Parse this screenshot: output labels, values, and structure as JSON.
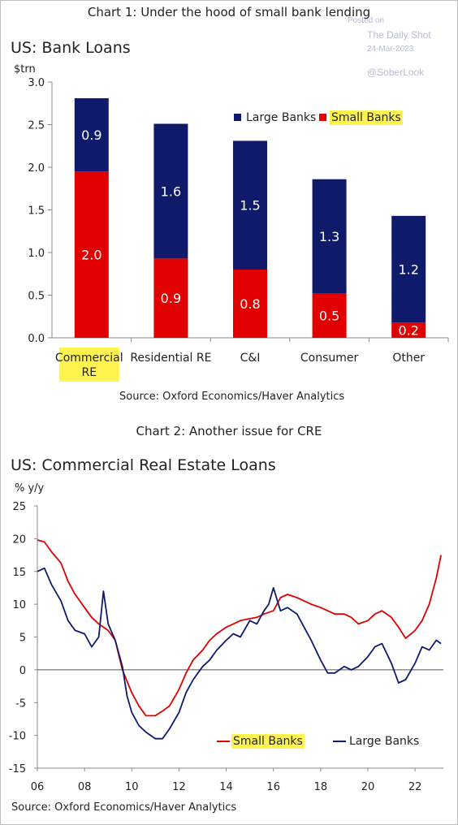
{
  "chart1": {
    "caption": "Chart 1: Under the hood of small bank lending",
    "title": "US: Bank Loans",
    "unit": "$trn",
    "source": "Source: Oxford Economics/Haver Analytics",
    "legend": {
      "large": "Large Banks",
      "small": "Small Banks"
    }
  },
  "chart2": {
    "caption": "Chart 2: Another issue for CRE",
    "title": "US: Commercial Real Estate Loans",
    "unit": "% y/y",
    "source": "Source: Oxford Economics/Haver Analytics",
    "legend": {
      "small": "Small Banks",
      "large": "Large Banks"
    }
  },
  "watermark": {
    "posted": "Posted on",
    "site": "The Daily Shot",
    "date": "24-Mar-2023",
    "handle": "@SoberLook"
  },
  "colors": {
    "large": "#0f1a6b",
    "small": "#e00000",
    "highlight": "#fff44f"
  },
  "chart_data": [
    {
      "type": "bar",
      "stacked": true,
      "categories": [
        "Commercial RE",
        "Residential RE",
        "C&I",
        "Consumer",
        "Other"
      ],
      "category_lines": [
        [
          "Commercial",
          "RE"
        ],
        [
          "Residential RE"
        ],
        [
          "C&I"
        ],
        [
          "Consumer"
        ],
        [
          "Other"
        ]
      ],
      "series": [
        {
          "name": "Small Banks",
          "values": [
            1.95,
            0.93,
            0.8,
            0.52,
            0.18
          ],
          "labels": [
            "2.0",
            "0.9",
            "0.8",
            "0.5",
            "0.2"
          ]
        },
        {
          "name": "Large Banks",
          "values": [
            0.86,
            1.58,
            1.51,
            1.34,
            1.25
          ],
          "labels": [
            "0.9",
            "1.6",
            "1.5",
            "1.3",
            "1.2"
          ]
        }
      ],
      "ylim": [
        0,
        3.0
      ],
      "yticks": [
        "0.0",
        "0.5",
        "1.0",
        "1.5",
        "2.0",
        "2.5",
        "3.0"
      ],
      "legend_position": "top-right"
    },
    {
      "type": "line",
      "x_ticks": [
        "06",
        "08",
        "10",
        "12",
        "14",
        "16",
        "18",
        "20",
        "22"
      ],
      "ylim": [
        -15,
        25
      ],
      "yticks": [
        "25",
        "20",
        "15",
        "10",
        "5",
        "0",
        "-5",
        "-10",
        "-15"
      ],
      "legend_position": "bottom-right",
      "series": [
        {
          "name": "Small Banks",
          "x": [
            2006.0,
            2006.3,
            2006.6,
            2007.0,
            2007.3,
            2007.6,
            2008.0,
            2008.3,
            2008.6,
            2009.0,
            2009.3,
            2009.6,
            2010.0,
            2010.3,
            2010.6,
            2011.0,
            2011.3,
            2011.6,
            2012.0,
            2012.3,
            2012.6,
            2013.0,
            2013.3,
            2013.6,
            2014.0,
            2014.3,
            2014.6,
            2015.0,
            2015.3,
            2015.6,
            2016.0,
            2016.3,
            2016.6,
            2017.0,
            2017.3,
            2017.6,
            2018.0,
            2018.3,
            2018.6,
            2019.0,
            2019.3,
            2019.6,
            2020.0,
            2020.3,
            2020.6,
            2021.0,
            2021.3,
            2021.6,
            2022.0,
            2022.3,
            2022.6,
            2022.9,
            2023.1
          ],
          "y": [
            19.8,
            19.5,
            18.0,
            16.3,
            13.5,
            11.5,
            9.5,
            8.0,
            7.0,
            6.0,
            4.5,
            0.0,
            -3.5,
            -5.5,
            -7.0,
            -7.0,
            -6.3,
            -5.5,
            -3.0,
            -0.5,
            1.5,
            3.0,
            4.5,
            5.5,
            6.5,
            7.0,
            7.5,
            7.8,
            8.0,
            8.5,
            9.0,
            11.0,
            11.5,
            11.0,
            10.5,
            10.0,
            9.5,
            9.0,
            8.5,
            8.5,
            8.0,
            7.0,
            7.5,
            8.5,
            9.0,
            8.0,
            6.5,
            4.8,
            6.0,
            7.5,
            10.0,
            14.0,
            17.5
          ]
        },
        {
          "name": "Large Banks",
          "x": [
            2006.0,
            2006.3,
            2006.6,
            2007.0,
            2007.3,
            2007.6,
            2008.0,
            2008.3,
            2008.6,
            2008.8,
            2009.0,
            2009.3,
            2009.6,
            2009.8,
            2010.0,
            2010.3,
            2010.6,
            2011.0,
            2011.3,
            2011.6,
            2012.0,
            2012.3,
            2012.6,
            2013.0,
            2013.3,
            2013.6,
            2014.0,
            2014.3,
            2014.6,
            2015.0,
            2015.3,
            2015.6,
            2015.8,
            2016.0,
            2016.3,
            2016.6,
            2017.0,
            2017.3,
            2017.6,
            2018.0,
            2018.3,
            2018.6,
            2019.0,
            2019.3,
            2019.6,
            2020.0,
            2020.3,
            2020.6,
            2021.0,
            2021.3,
            2021.6,
            2022.0,
            2022.3,
            2022.6,
            2022.9,
            2023.1
          ],
          "y": [
            15.0,
            15.5,
            13.0,
            10.5,
            7.5,
            6.0,
            5.5,
            3.5,
            5.0,
            12.0,
            7.0,
            4.5,
            0.5,
            -4.0,
            -6.5,
            -8.5,
            -9.5,
            -10.5,
            -10.5,
            -9.0,
            -6.5,
            -3.5,
            -1.5,
            0.5,
            1.5,
            3.0,
            4.5,
            5.5,
            5.0,
            7.5,
            7.0,
            9.0,
            10.0,
            12.5,
            9.0,
            9.5,
            8.5,
            6.5,
            4.5,
            1.5,
            -0.5,
            -0.5,
            0.5,
            0.0,
            0.5,
            2.0,
            3.5,
            4.0,
            1.0,
            -2.0,
            -1.5,
            1.0,
            3.5,
            3.0,
            4.5,
            4.0
          ]
        }
      ]
    }
  ]
}
